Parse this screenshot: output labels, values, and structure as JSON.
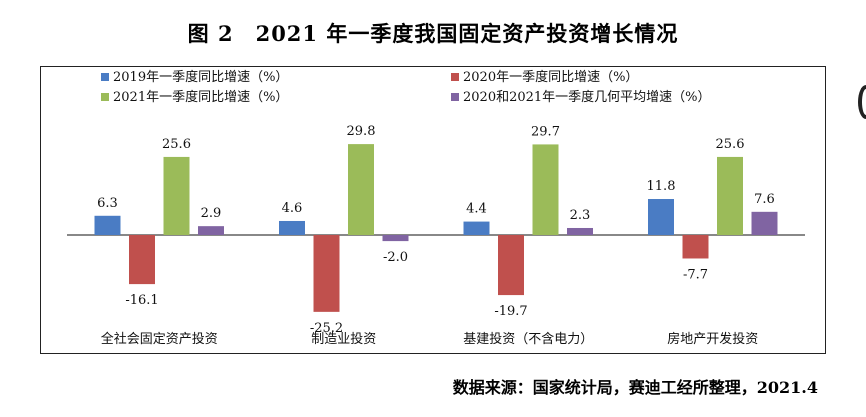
{
  "title": "图 2　2021 年一季度我国固定资产投资增长情况",
  "source": "数据来源：国家统计局，赛迪工经所整理，2021.4",
  "chart_data": {
    "type": "bar",
    "categories": [
      "全社会固定资产投资",
      "制造业投资",
      "基建投资（不含电力）",
      "房地产开发投资"
    ],
    "series": [
      {
        "name": "2019年一季度同比增速（%）",
        "color": "#4a7cc4",
        "values": [
          6.3,
          4.6,
          4.4,
          11.8
        ]
      },
      {
        "name": "2020年一季度同比增速（%）",
        "color": "#c0504d",
        "values": [
          -16.1,
          -25.2,
          -19.7,
          -7.7
        ]
      },
      {
        "name": "2021年一季度同比增速（%）",
        "color": "#9bbb59",
        "values": [
          25.6,
          29.8,
          29.7,
          25.6
        ]
      },
      {
        "name": "2020和2021年一季度几何平均增速（%）",
        "color": "#8064a2",
        "values": [
          2.9,
          -2.0,
          2.3,
          7.6
        ]
      }
    ],
    "legend_position": "top",
    "ylim": [
      -30,
      35
    ],
    "grid": false
  }
}
